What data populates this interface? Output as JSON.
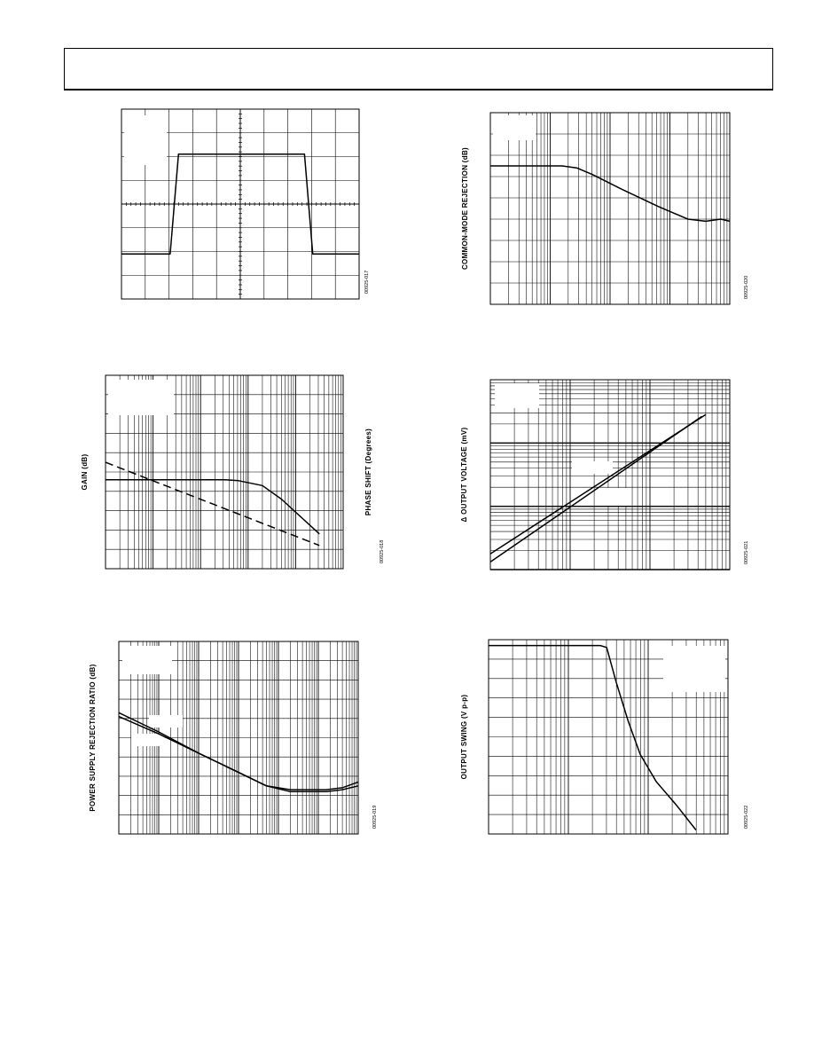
{
  "page": {
    "header": {
      "text": ""
    }
  },
  "colors": {
    "ink": "#000000",
    "paper": "#ffffff",
    "grid": "#000000"
  },
  "chart_data": [
    {
      "id": "fig17",
      "type": "line",
      "xscale": "linear",
      "yscale": "linear",
      "x_divisions": 10,
      "y_divisions": 8,
      "xlim": [
        0,
        10
      ],
      "ylim": [
        0,
        8
      ],
      "figure_id": "00925-017",
      "ylabel": "",
      "ylabel_right": "",
      "series": [
        {
          "style": "solid",
          "x": [
            0,
            2.05,
            2.4,
            5.0,
            7.7,
            8.05,
            10
          ],
          "y": [
            1.9,
            1.9,
            6.1,
            6.1,
            6.1,
            1.9,
            1.9
          ]
        }
      ]
    },
    {
      "id": "fig20",
      "type": "line",
      "xscale": "log",
      "yscale": "linear",
      "decades": 4,
      "y_divisions": 9,
      "xlim": [
        0,
        4
      ],
      "ylim": [
        0,
        9
      ],
      "figure_id": "00925-020",
      "ylabel": "COMMON-MODE REJECTION (dB)",
      "ylabel_right": "",
      "series": [
        {
          "style": "solid",
          "x": [
            0,
            0.9,
            1.2,
            1.45,
            1.7,
            2.2,
            2.8,
            3.3,
            3.6,
            3.85,
            4.0
          ],
          "y": [
            6.5,
            6.5,
            6.5,
            6.4,
            6.1,
            5.4,
            4.6,
            4.0,
            3.9,
            4.0,
            3.9
          ]
        }
      ]
    },
    {
      "id": "fig18",
      "type": "line",
      "xscale": "log",
      "yscale": "linear",
      "decades": 5,
      "y_divisions": 10,
      "xlim": [
        0,
        5
      ],
      "ylim": [
        0,
        10
      ],
      "figure_id": "00925-018",
      "ylabel": "GAIN (dB)",
      "ylabel_right": "PHASE SHIFT (Degrees)",
      "series": [
        {
          "style": "solid",
          "x": [
            0,
            2.5,
            2.8,
            3.3,
            3.7,
            4.5
          ],
          "y": [
            4.6,
            4.6,
            4.55,
            4.3,
            3.6,
            1.8
          ]
        },
        {
          "style": "dashed",
          "x": [
            0,
            4.5
          ],
          "y": [
            5.5,
            1.2
          ]
        }
      ]
    },
    {
      "id": "fig21",
      "type": "line",
      "xscale": "log",
      "yscale": "log",
      "decades": 3,
      "y_decades": 3,
      "xlim": [
        0,
        3
      ],
      "ylim": [
        0,
        3
      ],
      "figure_id": "00925-021",
      "ylabel": "Δ OUTPUT VOLTAGE (mV)",
      "ylabel_right": "",
      "series": [
        {
          "style": "solid",
          "x": [
            0,
            2.7
          ],
          "y": [
            0.25,
            2.45
          ]
        },
        {
          "style": "solid",
          "x": [
            0,
            2.65
          ],
          "y": [
            0.12,
            2.42
          ]
        }
      ]
    },
    {
      "id": "fig19",
      "type": "line",
      "xscale": "log",
      "yscale": "linear",
      "decades": 6,
      "y_divisions": 10,
      "xlim": [
        0,
        6
      ],
      "ylim": [
        0,
        10
      ],
      "figure_id": "00925-019",
      "ylabel": "POWER SUPPLY REJECTION RATIO (dB)",
      "ylabel_right": "",
      "series": [
        {
          "style": "solid",
          "x": [
            0,
            1,
            2,
            3,
            3.7,
            4.3,
            4.7,
            5.2,
            5.6,
            6.0
          ],
          "y": [
            6.1,
            5.2,
            4.2,
            3.2,
            2.5,
            2.3,
            2.3,
            2.3,
            2.4,
            2.7
          ]
        },
        {
          "style": "solid",
          "x": [
            0,
            1,
            2,
            3,
            3.7,
            4.3,
            4.7,
            5.2,
            5.6,
            6.0
          ],
          "y": [
            6.3,
            5.3,
            4.2,
            3.2,
            2.5,
            2.2,
            2.2,
            2.2,
            2.3,
            2.5
          ]
        }
      ]
    },
    {
      "id": "fig22",
      "type": "line",
      "xscale": "log",
      "yscale": "linear",
      "decades": 3,
      "y_divisions": 10,
      "xlim": [
        0,
        3
      ],
      "ylim": [
        0,
        10
      ],
      "figure_id": "00925-022",
      "ylabel": "OUTPUT SWING (V p-p)",
      "ylabel_right": "",
      "series": [
        {
          "style": "solid",
          "x": [
            0,
            1.4,
            1.48,
            1.6,
            1.75,
            1.9,
            2.1,
            2.35,
            2.6
          ],
          "y": [
            9.7,
            9.7,
            9.6,
            7.8,
            5.8,
            4.1,
            2.7,
            1.5,
            0.2
          ]
        }
      ]
    }
  ]
}
